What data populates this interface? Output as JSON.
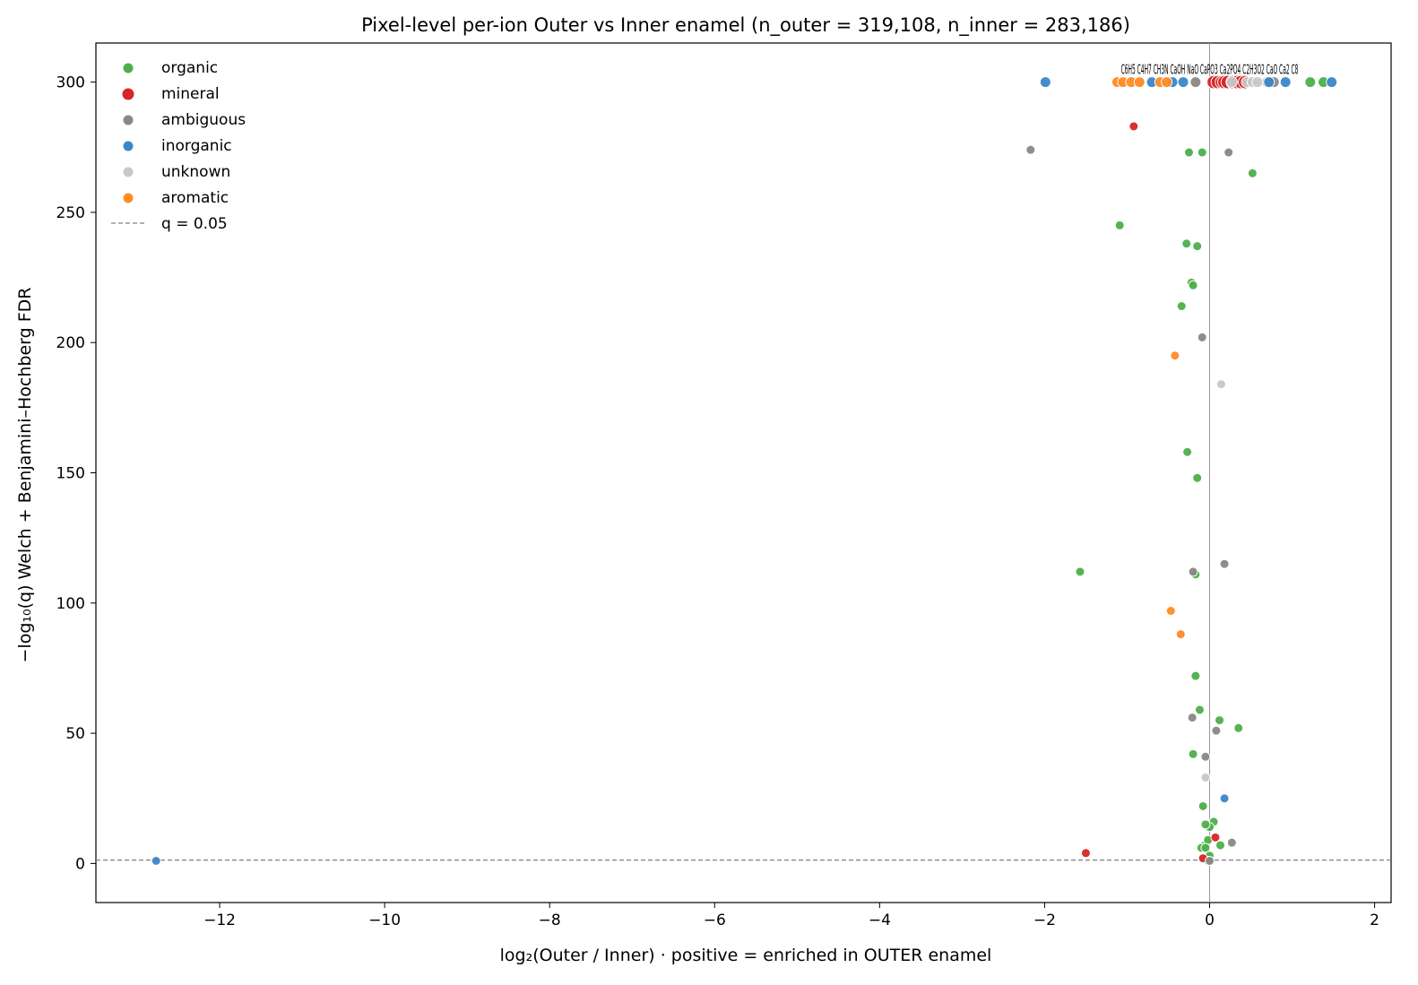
{
  "chart_data": {
    "type": "scatter",
    "title": "Pixel-level per-ion Outer vs Inner enamel (n_outer = 319,108, n_inner = 283,186)",
    "xlabel": "log₂(Outer / Inner)  ·  positive = enriched in OUTER enamel",
    "ylabel": "−log₁₀(q)  Welch + Benjamini–Hochberg FDR",
    "xlim": [
      -13.5,
      2.2
    ],
    "ylim": [
      -15,
      315
    ],
    "xticks": [
      -12,
      -10,
      -8,
      -6,
      -4,
      -2,
      0,
      2
    ],
    "xtick_labels": [
      "−12",
      "−10",
      "−8",
      "−6",
      "−4",
      "−2",
      "0",
      "2"
    ],
    "yticks": [
      0,
      50,
      100,
      150,
      200,
      250,
      300
    ],
    "ytick_labels": [
      "0",
      "50",
      "100",
      "150",
      "200",
      "250",
      "300"
    ],
    "threshold": {
      "y": 1.3,
      "label": "q = 0.05",
      "color": "#808080"
    },
    "vline_x": 0,
    "legend_position": "top-left",
    "grid": false,
    "top_annotation": "C6H5 C4H7 CH3N CaOH NaO CaPO3 Ca2PO4 C2H3O2 CaO Ca2 C8",
    "series": [
      {
        "name": "organic",
        "color": "#4daf4a",
        "points": [
          [
            1.22,
            300
          ],
          [
            1.38,
            300
          ],
          [
            -0.25,
            273
          ],
          [
            -0.09,
            273
          ],
          [
            0.52,
            265
          ],
          [
            -1.09,
            245
          ],
          [
            -0.28,
            238
          ],
          [
            -0.15,
            237
          ],
          [
            -0.22,
            223
          ],
          [
            -0.2,
            222
          ],
          [
            -0.34,
            214
          ],
          [
            -0.27,
            158
          ],
          [
            -0.15,
            148
          ],
          [
            -1.57,
            112
          ],
          [
            -0.17,
            111
          ],
          [
            -0.17,
            72
          ],
          [
            -0.12,
            59
          ],
          [
            0.12,
            55
          ],
          [
            0.35,
            52
          ],
          [
            -0.2,
            42
          ],
          [
            -0.08,
            22
          ],
          [
            0.05,
            16
          ],
          [
            0.0,
            14
          ],
          [
            -0.05,
            15
          ],
          [
            -0.06,
            7
          ],
          [
            0.13,
            7
          ],
          [
            -0.02,
            9
          ],
          [
            -0.1,
            6
          ],
          [
            -0.05,
            6
          ],
          [
            0.0,
            3
          ],
          [
            -0.02,
            1
          ]
        ]
      },
      {
        "name": "mineral",
        "color": "#d62728",
        "points": [
          [
            0.05,
            300
          ],
          [
            0.1,
            300
          ],
          [
            0.15,
            300
          ],
          [
            0.18,
            300
          ],
          [
            0.22,
            300
          ],
          [
            0.28,
            300
          ],
          [
            0.33,
            300
          ],
          [
            0.38,
            300
          ],
          [
            0.43,
            300
          ],
          [
            -0.92,
            283
          ],
          [
            0.07,
            10
          ],
          [
            -1.5,
            4
          ],
          [
            -0.08,
            2
          ]
        ]
      },
      {
        "name": "ambiguous",
        "color": "#888888",
        "points": [
          [
            -0.17,
            300
          ],
          [
            0.7,
            300
          ],
          [
            0.78,
            300
          ],
          [
            -2.17,
            274
          ],
          [
            0.23,
            273
          ],
          [
            -0.09,
            202
          ],
          [
            -0.2,
            112
          ],
          [
            0.18,
            115
          ],
          [
            -0.21,
            56
          ],
          [
            0.08,
            51
          ],
          [
            -0.05,
            41
          ],
          [
            0.27,
            8
          ],
          [
            0.0,
            1
          ]
        ]
      },
      {
        "name": "inorganic",
        "color": "#3a87c8",
        "points": [
          [
            -1.99,
            300
          ],
          [
            -0.7,
            300
          ],
          [
            -0.45,
            300
          ],
          [
            -0.32,
            300
          ],
          [
            0.72,
            300
          ],
          [
            0.92,
            300
          ],
          [
            1.48,
            300
          ],
          [
            0.18,
            25
          ],
          [
            -12.77,
            1
          ]
        ]
      },
      {
        "name": "unknown",
        "color": "#c8c8c8",
        "points": [
          [
            -0.92,
            300
          ],
          [
            -0.85,
            300
          ],
          [
            -0.58,
            300
          ],
          [
            0.27,
            300
          ],
          [
            0.45,
            300
          ],
          [
            0.52,
            300
          ],
          [
            0.58,
            300
          ],
          [
            0.14,
            184
          ],
          [
            -0.05,
            33
          ]
        ]
      },
      {
        "name": "aromatic",
        "color": "#ff8c26",
        "points": [
          [
            -1.12,
            300
          ],
          [
            -1.05,
            300
          ],
          [
            -0.95,
            300
          ],
          [
            -0.85,
            300
          ],
          [
            -0.6,
            300
          ],
          [
            -0.52,
            300
          ],
          [
            -0.42,
            195
          ],
          [
            -0.47,
            97
          ],
          [
            -0.35,
            88
          ]
        ]
      }
    ]
  }
}
